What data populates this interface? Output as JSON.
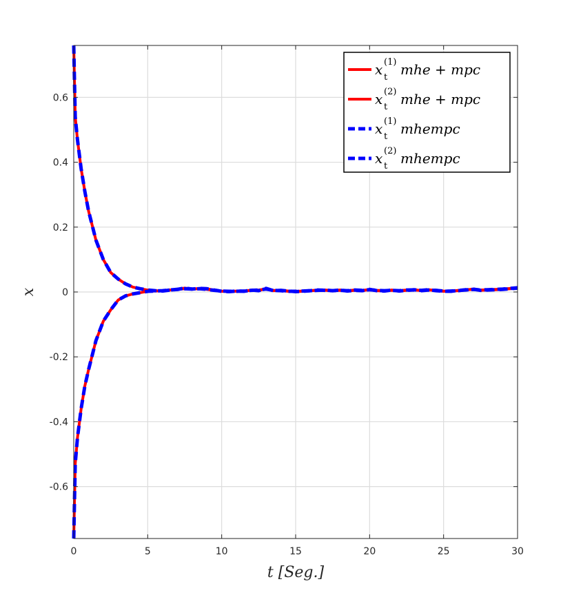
{
  "chart_data": {
    "type": "line",
    "xlabel": "t [Seg.]",
    "ylabel": "x",
    "xlim": [
      0,
      30
    ],
    "ylim": [
      -0.76,
      0.76
    ],
    "xticks": [
      0,
      5,
      10,
      15,
      20,
      25,
      30
    ],
    "yticks": [
      -0.6,
      -0.4,
      -0.2,
      0,
      0.2,
      0.4,
      0.6
    ],
    "xtick_labels": [
      "0",
      "5",
      "10",
      "15",
      "20",
      "25",
      "30"
    ],
    "ytick_labels": [
      "-0.6",
      "-0.4",
      "-0.2",
      "0",
      "0.2",
      "0.4",
      "0.6"
    ],
    "grid": true,
    "legend_position": "top-right",
    "colors": {
      "mhe_mpc": "#ff0000",
      "mhempc": "#0000ff",
      "grid": "#dcdcdc",
      "axis": "#262626"
    },
    "series": [
      {
        "name": "x_t^(1) mhe + mpc",
        "legend": {
          "base": "x",
          "sub": "t",
          "sup": "(1)",
          "rest": "mhe + mpc"
        },
        "style": "solid",
        "color": "#ff0000",
        "x": [
          0,
          0.1,
          0.25,
          0.5,
          0.75,
          1,
          1.5,
          2,
          2.5,
          3,
          3.5,
          4,
          4.5,
          5,
          5.5,
          6,
          6.5,
          7,
          7.5,
          8,
          8.5,
          9,
          9.5,
          10,
          10.5,
          11,
          11.5,
          12,
          12.5,
          13,
          13.5,
          14,
          14.5,
          15,
          15.5,
          16,
          16.5,
          17,
          17.5,
          18,
          18.5,
          19,
          19.5,
          20,
          20.5,
          21,
          21.5,
          22,
          22.5,
          23,
          23.5,
          24,
          24.5,
          25,
          25.5,
          26,
          26.5,
          27,
          27.5,
          28,
          28.5,
          29,
          29.5,
          30
        ],
        "y": [
          0.76,
          0.54,
          0.47,
          0.38,
          0.31,
          0.25,
          0.16,
          0.1,
          0.06,
          0.04,
          0.025,
          0.015,
          0.01,
          0.006,
          0.004,
          0.003,
          0.006,
          0.008,
          0.012,
          0.009,
          0.011,
          0.01,
          0.006,
          0.002,
          0.001,
          0.003,
          0.002,
          0.006,
          0.004,
          0.011,
          0.004,
          0.005,
          0.003,
          0.001,
          0.002,
          0.004,
          0.006,
          0.005,
          0.004,
          0.006,
          0.003,
          0.005,
          0.004,
          0.008,
          0.004,
          0.003,
          0.006,
          0.003,
          0.005,
          0.007,
          0.004,
          0.006,
          0.005,
          0.003,
          0.002,
          0.005,
          0.006,
          0.009,
          0.005,
          0.006,
          0.007,
          0.008,
          0.01,
          0.012
        ]
      },
      {
        "name": "x_t^(2) mhe + mpc",
        "legend": {
          "base": "x",
          "sub": "t",
          "sup": "(2)",
          "rest": "mhe + mpc"
        },
        "style": "solid",
        "color": "#ff0000",
        "x": [
          0,
          0.1,
          0.25,
          0.5,
          0.75,
          1,
          1.5,
          2,
          2.5,
          3,
          3.5,
          4,
          4.5,
          5,
          5.5,
          6,
          6.5,
          7,
          7.5,
          8,
          8.5,
          9,
          9.5,
          10,
          10.5,
          11,
          11.5,
          12,
          12.5,
          13,
          13.5,
          14,
          14.5,
          15,
          15.5,
          16,
          16.5,
          17,
          17.5,
          18,
          18.5,
          19,
          19.5,
          20,
          20.5,
          21,
          21.5,
          22,
          22.5,
          23,
          23.5,
          24,
          24.5,
          25,
          25.5,
          26,
          26.5,
          27,
          27.5,
          28,
          28.5,
          29,
          29.5,
          30
        ],
        "y": [
          -0.76,
          -0.53,
          -0.45,
          -0.36,
          -0.29,
          -0.24,
          -0.15,
          -0.09,
          -0.055,
          -0.025,
          -0.012,
          -0.006,
          -0.002,
          0.002,
          0.003,
          0.004,
          0.006,
          0.008,
          0.01,
          0.009,
          0.01,
          0.008,
          0.005,
          0.003,
          0.002,
          0.002,
          0.003,
          0.005,
          0.006,
          0.009,
          0.005,
          0.004,
          0.002,
          0.002,
          0.003,
          0.004,
          0.005,
          0.006,
          0.004,
          0.005,
          0.004,
          0.006,
          0.005,
          0.007,
          0.005,
          0.004,
          0.005,
          0.004,
          0.006,
          0.006,
          0.005,
          0.007,
          0.004,
          0.002,
          0.003,
          0.004,
          0.007,
          0.008,
          0.006,
          0.007,
          0.008,
          0.009,
          0.011,
          0.013
        ]
      },
      {
        "name": "x_t^(1) mhempc",
        "legend": {
          "base": "x",
          "sub": "t",
          "sup": "(1)",
          "rest": "mhempc"
        },
        "style": "dashed",
        "color": "#0000ff",
        "x": [
          0,
          0.1,
          0.25,
          0.5,
          0.75,
          1,
          1.5,
          2,
          2.5,
          3,
          3.5,
          4,
          4.5,
          5,
          5.5,
          6,
          6.5,
          7,
          7.5,
          8,
          8.5,
          9,
          9.5,
          10,
          10.5,
          11,
          11.5,
          12,
          12.5,
          13,
          13.5,
          14,
          14.5,
          15,
          15.5,
          16,
          16.5,
          17,
          17.5,
          18,
          18.5,
          19,
          19.5,
          20,
          20.5,
          21,
          21.5,
          22,
          22.5,
          23,
          23.5,
          24,
          24.5,
          25,
          25.5,
          26,
          26.5,
          27,
          27.5,
          28,
          28.5,
          29,
          29.5,
          30
        ],
        "y": [
          0.76,
          0.54,
          0.47,
          0.38,
          0.31,
          0.25,
          0.16,
          0.1,
          0.06,
          0.04,
          0.025,
          0.015,
          0.01,
          0.006,
          0.004,
          0.003,
          0.006,
          0.008,
          0.012,
          0.009,
          0.011,
          0.01,
          0.006,
          0.002,
          0.001,
          0.003,
          0.002,
          0.006,
          0.004,
          0.011,
          0.004,
          0.005,
          0.003,
          0.001,
          0.002,
          0.004,
          0.006,
          0.005,
          0.004,
          0.006,
          0.003,
          0.005,
          0.004,
          0.008,
          0.004,
          0.003,
          0.006,
          0.003,
          0.005,
          0.007,
          0.004,
          0.006,
          0.005,
          0.003,
          0.002,
          0.005,
          0.006,
          0.009,
          0.005,
          0.006,
          0.007,
          0.008,
          0.01,
          0.012
        ]
      },
      {
        "name": "x_t^(2) mhempc",
        "legend": {
          "base": "x",
          "sub": "t",
          "sup": "(2)",
          "rest": "mhempc"
        },
        "style": "dashed",
        "color": "#0000ff",
        "x": [
          0,
          0.1,
          0.25,
          0.5,
          0.75,
          1,
          1.5,
          2,
          2.5,
          3,
          3.5,
          4,
          4.5,
          5,
          5.5,
          6,
          6.5,
          7,
          7.5,
          8,
          8.5,
          9,
          9.5,
          10,
          10.5,
          11,
          11.5,
          12,
          12.5,
          13,
          13.5,
          14,
          14.5,
          15,
          15.5,
          16,
          16.5,
          17,
          17.5,
          18,
          18.5,
          19,
          19.5,
          20,
          20.5,
          21,
          21.5,
          22,
          22.5,
          23,
          23.5,
          24,
          24.5,
          25,
          25.5,
          26,
          26.5,
          27,
          27.5,
          28,
          28.5,
          29,
          29.5,
          30
        ],
        "y": [
          -0.76,
          -0.53,
          -0.45,
          -0.36,
          -0.29,
          -0.24,
          -0.15,
          -0.09,
          -0.055,
          -0.025,
          -0.012,
          -0.006,
          -0.002,
          0.002,
          0.003,
          0.004,
          0.006,
          0.008,
          0.01,
          0.009,
          0.01,
          0.008,
          0.005,
          0.003,
          0.002,
          0.002,
          0.003,
          0.005,
          0.006,
          0.009,
          0.005,
          0.004,
          0.002,
          0.002,
          0.003,
          0.004,
          0.005,
          0.006,
          0.004,
          0.005,
          0.004,
          0.006,
          0.005,
          0.007,
          0.005,
          0.004,
          0.005,
          0.004,
          0.006,
          0.006,
          0.005,
          0.007,
          0.004,
          0.002,
          0.003,
          0.004,
          0.007,
          0.008,
          0.006,
          0.007,
          0.008,
          0.009,
          0.011,
          0.013
        ]
      }
    ]
  }
}
